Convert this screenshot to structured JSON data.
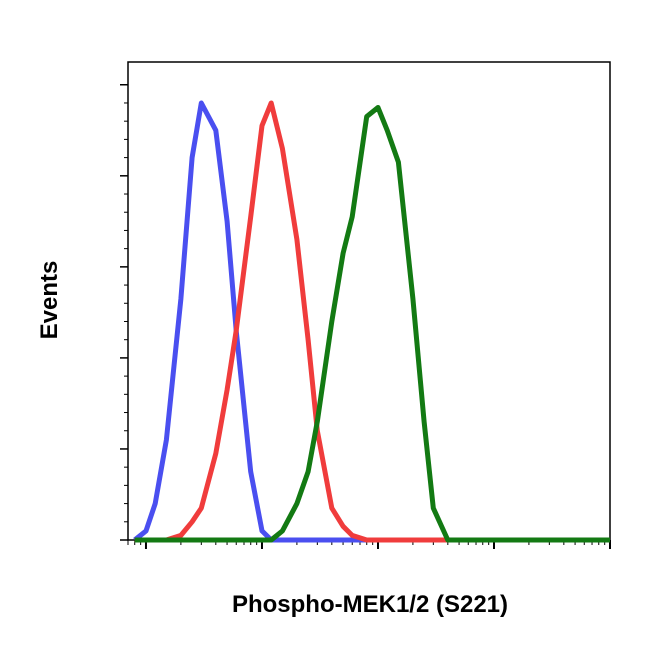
{
  "chart_data": {
    "type": "line",
    "x_label": "Phospho-MEK1/2 (S221)",
    "y_label": "Events",
    "x": [
      8,
      10,
      12,
      15,
      20,
      25,
      30,
      40,
      50,
      60,
      80,
      100,
      120,
      150,
      200,
      250,
      300,
      400,
      500,
      600,
      800,
      1000,
      1200,
      1500,
      2000,
      2500,
      3000,
      4000,
      5000,
      6000,
      8000,
      10000,
      20000,
      50000,
      100000
    ],
    "series": [
      {
        "color": "#4a4ff0",
        "values": [
          0,
          2,
          8,
          22,
          53,
          84,
          96,
          90,
          70,
          46,
          15,
          2,
          0,
          0,
          0,
          0,
          0,
          0,
          0,
          0,
          0,
          0,
          0,
          0,
          0,
          0,
          0,
          0,
          0,
          0,
          0,
          0,
          0,
          0,
          0
        ]
      },
      {
        "color": "#f03c3c",
        "values": [
          0,
          0,
          0,
          0,
          1,
          4,
          7,
          19,
          33,
          46,
          71,
          91,
          96,
          86,
          66,
          44,
          24,
          7,
          3,
          1,
          0,
          0,
          0,
          0,
          0,
          0,
          0,
          0,
          0,
          0,
          0,
          0,
          0,
          0,
          0
        ]
      },
      {
        "color": "#137a13",
        "values": [
          0,
          0,
          0,
          0,
          0,
          0,
          0,
          0,
          0,
          0,
          0,
          0,
          0,
          2,
          8,
          15,
          26,
          48,
          63,
          71,
          93,
          95,
          90,
          83,
          53,
          26,
          7,
          0,
          0,
          0,
          0,
          0,
          0,
          0,
          0
        ]
      }
    ],
    "x_log": true,
    "xlim": [
      7,
      100000
    ],
    "xticks": [
      10,
      100,
      1000,
      10000,
      100000
    ],
    "ylim": [
      0,
      105
    ],
    "yticks": [
      0,
      20,
      40,
      60,
      80,
      100
    ]
  }
}
